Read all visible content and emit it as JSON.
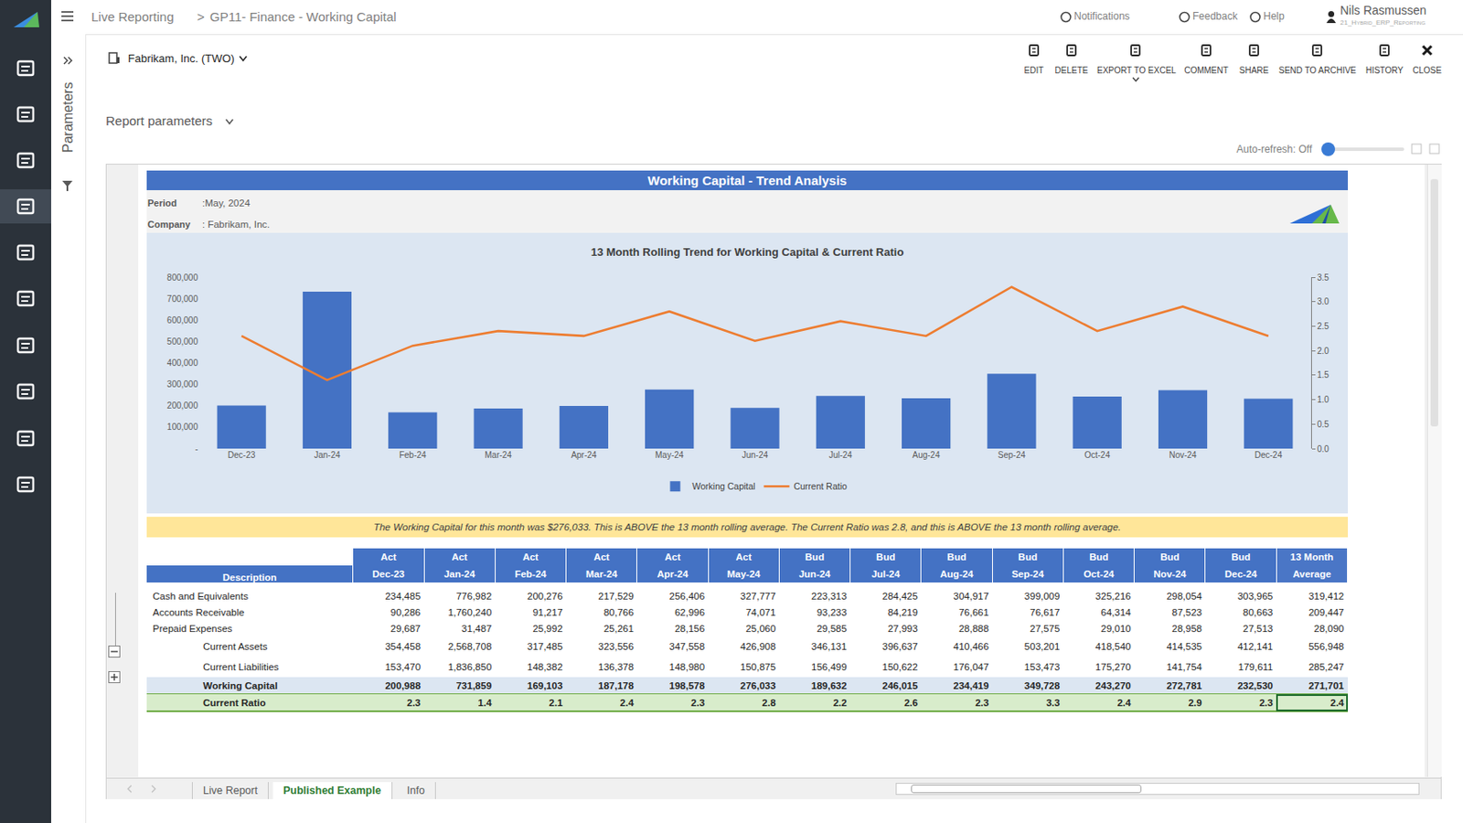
{
  "app": {
    "breadcrumb": [
      "Live Reporting",
      ">",
      "GP11- Finance - Working Capital"
    ],
    "menu": [
      "Notifications",
      "Feedback",
      "Help"
    ],
    "user": "Nils Rasmussen",
    "user_sub": "21_Hybrid_ERP_Reporting",
    "company_selector": "Fabrikam, Inc. (TWO)",
    "side_panel": "Parameters",
    "report_parameters": "Report parameters",
    "toolbar": [
      "EDIT",
      "DELETE",
      "EXPORT TO EXCEL",
      "COMMENT",
      "SHARE",
      "SEND TO ARCHIVE",
      "HISTORY",
      "CLOSE"
    ],
    "auto_refresh": "Auto-refresh: Off",
    "tabs": [
      "Live Report",
      "Published Example",
      "Info"
    ],
    "active_tab": "Published Example"
  },
  "report": {
    "title": "Working Capital - Trend Analysis",
    "meta": [
      {
        "label": "Period",
        "value": ":May, 2024"
      },
      {
        "label": "Company",
        "value": ": Fabrikam, Inc."
      }
    ],
    "note": "The Working Capital for this month was $276,033. This is ABOVE the 13 month rolling average. The Current Ratio was 2.8, and this is ABOVE the 13 month rolling average.",
    "table": {
      "header_top": [
        "",
        "Act",
        "Act",
        "Act",
        "Act",
        "Act",
        "Act",
        "Bud",
        "Bud",
        "Bud",
        "Bud",
        "Bud",
        "Bud",
        "Bud",
        "13 Month"
      ],
      "header_bottom": [
        "Description",
        "Dec-23",
        "Jan-24",
        "Feb-24",
        "Mar-24",
        "Apr-24",
        "May-24",
        "Jun-24",
        "Jul-24",
        "Aug-24",
        "Sep-24",
        "Oct-24",
        "Nov-24",
        "Dec-24",
        "Average"
      ],
      "rows": [
        {
          "style": "item",
          "label": "Cash and Equivalents",
          "cells": [
            "234,485",
            "776,982",
            "200,276",
            "217,529",
            "256,406",
            "327,777",
            "223,313",
            "284,425",
            "304,917",
            "399,009",
            "325,216",
            "298,054",
            "303,965",
            "319,412"
          ]
        },
        {
          "style": "item",
          "label": "Accounts Receivable",
          "cells": [
            "90,286",
            "1,760,240",
            "91,217",
            "80,766",
            "62,996",
            "74,071",
            "93,233",
            "84,219",
            "76,661",
            "76,617",
            "64,314",
            "87,523",
            "80,663",
            "209,447"
          ]
        },
        {
          "style": "item",
          "label": "Prepaid Expenses",
          "cells": [
            "29,687",
            "31,487",
            "25,992",
            "25,261",
            "28,156",
            "25,060",
            "29,585",
            "27,993",
            "28,888",
            "27,575",
            "29,010",
            "28,958",
            "27,513",
            "28,090"
          ]
        },
        {
          "style": "subtotal",
          "label": "Current Assets",
          "cells": [
            "354,458",
            "2,568,708",
            "317,485",
            "323,556",
            "347,558",
            "426,908",
            "346,131",
            "396,637",
            "410,466",
            "503,201",
            "418,540",
            "414,535",
            "412,141",
            "556,948"
          ]
        },
        {
          "style": "subtotal",
          "label": "Current Liabilities",
          "cells": [
            "153,470",
            "1,836,850",
            "148,382",
            "136,378",
            "148,980",
            "150,875",
            "156,499",
            "150,622",
            "176,047",
            "153,473",
            "175,270",
            "141,754",
            "179,611",
            "285,247"
          ]
        },
        {
          "style": "total",
          "label": "Working Capital",
          "cells": [
            "200,988",
            "731,859",
            "169,103",
            "187,178",
            "198,578",
            "276,033",
            "189,632",
            "246,015",
            "234,419",
            "349,728",
            "243,270",
            "272,781",
            "232,530",
            "271,701"
          ]
        },
        {
          "style": "ratio",
          "label": "Current Ratio",
          "cells": [
            "2.3",
            "1.4",
            "2.1",
            "2.4",
            "2.3",
            "2.8",
            "2.2",
            "2.6",
            "2.3",
            "3.3",
            "2.4",
            "2.9",
            "2.3",
            "2.4"
          ]
        }
      ]
    }
  },
  "chart_data": {
    "type": "bar",
    "title": "13 Month Rolling Trend for Working Capital & Current Ratio",
    "categories": [
      "Dec-23",
      "Jan-24",
      "Feb-24",
      "Mar-24",
      "Apr-24",
      "May-24",
      "Jun-24",
      "Jul-24",
      "Aug-24",
      "Sep-24",
      "Oct-24",
      "Nov-24",
      "Dec-24"
    ],
    "series": [
      {
        "name": "Working Capital",
        "type": "bar",
        "color": "#4472c4",
        "values": [
          200988,
          731859,
          169103,
          187178,
          198578,
          276033,
          189632,
          246015,
          234419,
          349728,
          243270,
          272781,
          232530
        ]
      },
      {
        "name": "Current Ratio",
        "type": "line",
        "color": "#ed7d31",
        "axis": "y2",
        "values": [
          2.3,
          1.4,
          2.1,
          2.4,
          2.3,
          2.8,
          2.2,
          2.6,
          2.3,
          3.3,
          2.4,
          2.9,
          2.3
        ]
      }
    ],
    "ylim": [
      0,
      800000
    ],
    "yticks": [
      {
        "value": 0,
        "label": "-"
      },
      {
        "value": 100000,
        "label": "100,000"
      },
      {
        "value": 200000,
        "label": "200,000"
      },
      {
        "value": 300000,
        "label": "300,000"
      },
      {
        "value": 400000,
        "label": "400,000"
      },
      {
        "value": 500000,
        "label": "500,000"
      },
      {
        "value": 600000,
        "label": "600,000"
      },
      {
        "value": 700000,
        "label": "700,000"
      },
      {
        "value": 800000,
        "label": "800,000"
      }
    ],
    "y2lim": [
      0,
      3.5
    ],
    "y2ticks": [
      {
        "value": 0,
        "label": "0.0"
      },
      0.5,
      {
        "value": 1,
        "label": "1.0"
      },
      1.5,
      {
        "value": 2,
        "label": "2.0"
      },
      2.5,
      {
        "value": 3,
        "label": "3.0"
      },
      3.5
    ],
    "legend": "bottom",
    "grid": false
  }
}
